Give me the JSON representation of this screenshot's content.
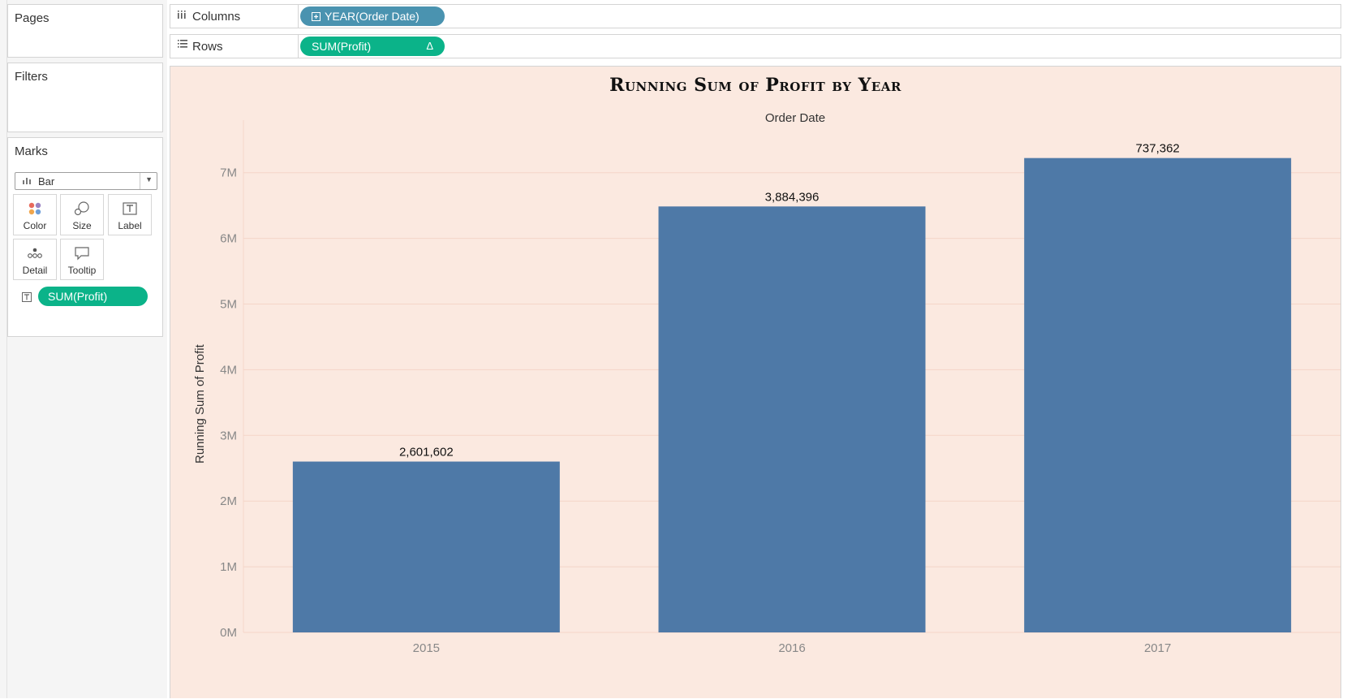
{
  "sidebar": {
    "pages": {
      "title": "Pages"
    },
    "filters": {
      "title": "Filters"
    },
    "marks": {
      "title": "Marks",
      "type_selector": {
        "value": "Bar",
        "icon": "bar-chart-icon"
      },
      "buttons": [
        {
          "label": "Color",
          "icon": "color-dots-icon"
        },
        {
          "label": "Size",
          "icon": "size-icon"
        },
        {
          "label": "Label",
          "icon": "text-label-icon"
        },
        {
          "label": "Detail",
          "icon": "detail-dots-icon"
        },
        {
          "label": "Tooltip",
          "icon": "tooltip-icon"
        }
      ],
      "field_pill": {
        "label": "SUM(Profit)",
        "icon": "text-label-icon"
      }
    }
  },
  "shelves": {
    "columns": {
      "label": "Columns",
      "icon": "columns-icon",
      "pill": "YEAR(Order Date)",
      "pill_icon": "expand-plus-icon"
    },
    "rows": {
      "label": "Rows",
      "icon": "rows-icon",
      "pill": "SUM(Profit)",
      "pill_icon": "delta-icon",
      "pill_marker": "Δ"
    }
  },
  "colors": {
    "bar": "#4e79a7",
    "viz_background": "#fbe9e0",
    "pill_green": "#0bb389",
    "pill_blue": "#4a93b0"
  },
  "chart_data": {
    "type": "bar",
    "title": "Running Sum of Profit by Year",
    "column_header": "Order Date",
    "ylabel": "Running Sum of Profit",
    "categories": [
      "2015",
      "2016",
      "2017"
    ],
    "values": [
      2601602,
      6486000,
      7223000
    ],
    "data_labels": [
      "2,601,602",
      "3,884,396",
      "737,362"
    ],
    "ylim": [
      0,
      7800000
    ],
    "y_ticks": [
      0,
      1000000,
      2000000,
      3000000,
      4000000,
      5000000,
      6000000,
      7000000
    ],
    "y_tick_labels": [
      "0M",
      "1M",
      "2M",
      "3M",
      "4M",
      "5M",
      "6M",
      "7M"
    ],
    "grid": true
  }
}
